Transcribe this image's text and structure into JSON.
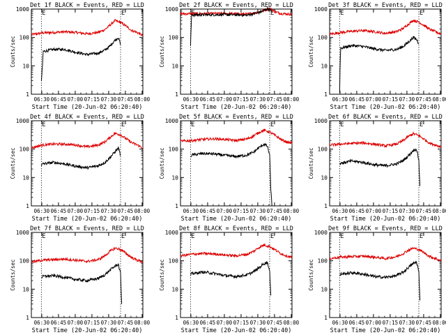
{
  "figure": {
    "xlabel": "Start Time (20-Jun-02 06:20:40)",
    "ylabel": "Counts/sec",
    "x_tick_labels": [
      "06:30",
      "06:45",
      "07:00",
      "07:15",
      "07:30",
      "07:45",
      "08:00"
    ],
    "y_tick_labels": [
      "1",
      "10",
      "100",
      "1000"
    ],
    "marker_labels": [
      "E",
      "E"
    ],
    "colors": {
      "events": "#000000",
      "lld": "#dd0000",
      "axes": "#000000"
    }
  },
  "chart_data": [
    {
      "type": "line",
      "title": "Det 1f BLACK = Events, RED = LLD",
      "xlabel": "Start Time (20-Jun-02 06:20:40)",
      "ylabel": "Counts/sec",
      "x_unit": "minutes after 06:20:40",
      "xlim": [
        0,
        100
      ],
      "ylim": [
        1,
        1000
      ],
      "y_scale": "log",
      "markers": [
        {
          "label": "E",
          "x": 9
        },
        {
          "label": "E",
          "x": 80
        }
      ],
      "series": [
        {
          "name": "LLD",
          "color": "red",
          "x": [
            0,
            10,
            20,
            30,
            40,
            50,
            60,
            66,
            70,
            75,
            80,
            85,
            90,
            95,
            100
          ],
          "y": [
            125,
            145,
            150,
            158,
            150,
            135,
            150,
            190,
            260,
            390,
            340,
            250,
            175,
            150,
            115
          ]
        },
        {
          "name": "Events",
          "color": "black",
          "x": [
            9,
            10,
            10.5,
            20,
            30,
            40,
            50,
            60,
            66,
            70,
            75,
            78,
            80
          ],
          "y": [
            3,
            10,
            32,
            38,
            38,
            30,
            25,
            28,
            36,
            48,
            80,
            100,
            55
          ]
        }
      ]
    },
    {
      "type": "line",
      "title": "Det 2f BLACK = Events, RED = LLD",
      "xlabel": "Start Time (20-Jun-02 06:20:40)",
      "ylabel": "Counts/sec",
      "x_unit": "minutes after 06:20:40",
      "xlim": [
        0,
        100
      ],
      "ylim": [
        1,
        1000
      ],
      "y_scale": "log",
      "markers": [
        {
          "label": "E",
          "x": 9
        },
        {
          "label": "E",
          "x": 80
        }
      ],
      "series": [
        {
          "name": "LLD",
          "color": "red",
          "x": [
            0,
            20,
            40,
            60,
            70,
            75,
            80,
            85,
            90,
            95,
            100
          ],
          "y": [
            680,
            690,
            700,
            660,
            780,
            900,
            1050,
            800,
            700,
            680,
            650
          ]
        },
        {
          "name": "Events",
          "color": "black",
          "x": [
            9,
            9.5,
            10,
            20,
            40,
            60,
            70,
            75,
            78,
            80,
            82
          ],
          "y": [
            50,
            200,
            620,
            630,
            640,
            610,
            750,
            880,
            1050,
            950,
            800
          ]
        }
      ]
    },
    {
      "type": "line",
      "title": "Det 3f BLACK = Events, RED = LLD",
      "xlabel": "Start Time (20-Jun-02 06:20:40)",
      "ylabel": "Counts/sec",
      "x_unit": "minutes after 06:20:40",
      "xlim": [
        0,
        100
      ],
      "ylim": [
        1,
        1000
      ],
      "y_scale": "log",
      "markers": [
        {
          "label": "E",
          "x": 9
        },
        {
          "label": "E",
          "x": 80
        }
      ],
      "series": [
        {
          "name": "LLD",
          "color": "red",
          "x": [
            0,
            10,
            20,
            30,
            40,
            50,
            60,
            66,
            70,
            75,
            80,
            85,
            90,
            95,
            100
          ],
          "y": [
            130,
            150,
            165,
            175,
            160,
            140,
            160,
            210,
            280,
            400,
            350,
            260,
            190,
            160,
            130
          ]
        },
        {
          "name": "Events",
          "color": "black",
          "x": [
            9,
            9.5,
            10,
            20,
            30,
            40,
            50,
            60,
            66,
            70,
            75,
            78,
            80
          ],
          "y": [
            1.2,
            20,
            42,
            52,
            48,
            40,
            35,
            38,
            48,
            65,
            100,
            85,
            60
          ]
        }
      ]
    },
    {
      "type": "line",
      "title": "Det 4f BLACK = Events, RED = LLD",
      "xlabel": "Start Time (20-Jun-02 06:20:40)",
      "ylabel": "Counts/sec",
      "x_unit": "minutes after 06:20:40",
      "xlim": [
        0,
        100
      ],
      "ylim": [
        1,
        1000
      ],
      "y_scale": "log",
      "markers": [
        {
          "label": "E",
          "x": 9
        },
        {
          "label": "E",
          "x": 80
        }
      ],
      "series": [
        {
          "name": "LLD",
          "color": "red",
          "x": [
            0,
            10,
            20,
            30,
            40,
            50,
            60,
            66,
            70,
            75,
            80,
            85,
            90,
            95,
            100
          ],
          "y": [
            110,
            140,
            150,
            150,
            140,
            120,
            140,
            180,
            250,
            360,
            320,
            230,
            170,
            140,
            110
          ]
        },
        {
          "name": "Events",
          "color": "black",
          "x": [
            9,
            10,
            20,
            30,
            40,
            50,
            60,
            66,
            70,
            75,
            78,
            80
          ],
          "y": [
            25,
            30,
            34,
            30,
            25,
            22,
            26,
            34,
            48,
            80,
            110,
            60
          ]
        }
      ]
    },
    {
      "type": "line",
      "title": "Det 5f BLACK = Events, RED = LLD",
      "xlabel": "Start Time (20-Jun-02 06:20:40)",
      "ylabel": "Counts/sec",
      "x_unit": "minutes after 06:20:40",
      "xlim": [
        0,
        100
      ],
      "ylim": [
        1,
        1000
      ],
      "y_scale": "log",
      "markers": [
        {
          "label": "E",
          "x": 9
        },
        {
          "label": "E",
          "x": 80
        }
      ],
      "series": [
        {
          "name": "LLD",
          "color": "red",
          "x": [
            0,
            10,
            20,
            30,
            40,
            50,
            60,
            66,
            70,
            75,
            80,
            85,
            90,
            95,
            100
          ],
          "y": [
            190,
            200,
            220,
            230,
            220,
            200,
            230,
            300,
            380,
            460,
            400,
            300,
            220,
            180,
            160
          ]
        },
        {
          "name": "Events",
          "color": "black",
          "x": [
            9,
            10,
            20,
            30,
            40,
            50,
            60,
            66,
            70,
            75,
            78,
            80,
            81,
            82
          ],
          "y": [
            55,
            62,
            70,
            68,
            60,
            55,
            62,
            80,
            110,
            150,
            125,
            60,
            4,
            1
          ]
        }
      ]
    },
    {
      "type": "line",
      "title": "Det 6f BLACK = Events, RED = LLD",
      "xlabel": "Start Time (20-Jun-02 06:20:40)",
      "ylabel": "Counts/sec",
      "x_unit": "minutes after 06:20:40",
      "xlim": [
        0,
        100
      ],
      "ylim": [
        1,
        1000
      ],
      "y_scale": "log",
      "markers": [
        {
          "label": "E",
          "x": 9
        },
        {
          "label": "E",
          "x": 80
        }
      ],
      "series": [
        {
          "name": "LLD",
          "color": "red",
          "x": [
            0,
            10,
            20,
            30,
            40,
            50,
            60,
            66,
            70,
            75,
            80,
            85,
            90,
            95,
            100
          ],
          "y": [
            140,
            150,
            160,
            165,
            150,
            130,
            150,
            200,
            270,
            350,
            300,
            220,
            160,
            140,
            120
          ]
        },
        {
          "name": "Events",
          "color": "black",
          "x": [
            9,
            10,
            20,
            30,
            40,
            50,
            60,
            66,
            70,
            75,
            78,
            80,
            81
          ],
          "y": [
            30,
            32,
            38,
            34,
            28,
            26,
            30,
            40,
            55,
            90,
            100,
            40,
            5
          ]
        }
      ]
    },
    {
      "type": "line",
      "title": "Det 7f BLACK = Events, RED = LLD",
      "xlabel": "Start Time (20-Jun-02 06:20:40)",
      "ylabel": "Counts/sec",
      "x_unit": "minutes after 06:20:40",
      "xlim": [
        0,
        100
      ],
      "ylim": [
        1,
        1000
      ],
      "y_scale": "log",
      "markers": [
        {
          "label": "E",
          "x": 9
        },
        {
          "label": "E",
          "x": 80
        }
      ],
      "series": [
        {
          "name": "LLD",
          "color": "red",
          "x": [
            0,
            10,
            20,
            30,
            40,
            50,
            60,
            66,
            70,
            75,
            80,
            85,
            90,
            95,
            100
          ],
          "y": [
            90,
            105,
            110,
            115,
            105,
            95,
            110,
            150,
            210,
            280,
            250,
            180,
            130,
            105,
            90
          ]
        },
        {
          "name": "Events",
          "color": "black",
          "x": [
            9,
            10,
            20,
            30,
            40,
            50,
            60,
            66,
            70,
            75,
            78,
            80,
            81
          ],
          "y": [
            25,
            28,
            30,
            26,
            22,
            20,
            24,
            32,
            45,
            65,
            75,
            35,
            3
          ]
        }
      ]
    },
    {
      "type": "line",
      "title": "Det 8f BLACK = Events, RED = LLD",
      "xlabel": "Start Time (20-Jun-02 06:20:40)",
      "ylabel": "Counts/sec",
      "x_unit": "minutes after 06:20:40",
      "xlim": [
        0,
        100
      ],
      "ylim": [
        1,
        1000
      ],
      "y_scale": "log",
      "markers": [
        {
          "label": "E",
          "x": 9
        },
        {
          "label": "E",
          "x": 80
        }
      ],
      "series": [
        {
          "name": "LLD",
          "color": "red",
          "x": [
            0,
            10,
            20,
            30,
            40,
            50,
            60,
            66,
            70,
            75,
            80,
            85,
            90,
            95,
            100
          ],
          "y": [
            150,
            170,
            180,
            175,
            160,
            150,
            170,
            220,
            290,
            360,
            320,
            240,
            180,
            150,
            130
          ]
        },
        {
          "name": "Events",
          "color": "black",
          "x": [
            9,
            10,
            20,
            30,
            40,
            50,
            60,
            66,
            70,
            75,
            78,
            80,
            81
          ],
          "y": [
            30,
            35,
            40,
            36,
            30,
            28,
            32,
            42,
            55,
            80,
            90,
            40,
            6
          ]
        }
      ]
    },
    {
      "type": "line",
      "title": "Det 9f BLACK = Events, RED = LLD",
      "xlabel": "Start Time (20-Jun-02 06:20:40)",
      "ylabel": "Counts/sec",
      "x_unit": "minutes after 06:20:40",
      "xlim": [
        0,
        100
      ],
      "ylim": [
        1,
        1000
      ],
      "y_scale": "log",
      "markers": [
        {
          "label": "E",
          "x": 9
        },
        {
          "label": "E",
          "x": 80
        }
      ],
      "series": [
        {
          "name": "LLD",
          "color": "red",
          "x": [
            0,
            10,
            20,
            30,
            40,
            50,
            60,
            66,
            70,
            75,
            80,
            85,
            90,
            95,
            100
          ],
          "y": [
            120,
            135,
            140,
            145,
            135,
            120,
            140,
            180,
            230,
            280,
            250,
            190,
            140,
            120,
            100
          ]
        },
        {
          "name": "Events",
          "color": "black",
          "x": [
            9,
            10,
            20,
            30,
            40,
            50,
            60,
            66,
            70,
            75,
            78,
            80,
            81
          ],
          "y": [
            30,
            34,
            38,
            34,
            28,
            26,
            30,
            40,
            55,
            80,
            90,
            40,
            4
          ]
        }
      ]
    }
  ]
}
